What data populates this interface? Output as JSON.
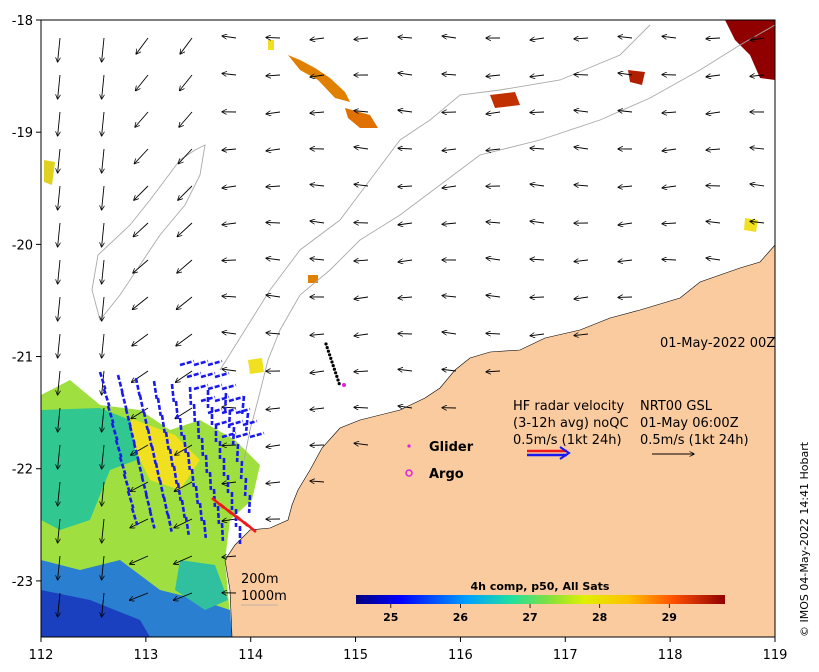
{
  "date_label": "01-May-2022 00Z",
  "credit": "© IMOS 04-May-2022 14:41 Hobart",
  "x_ticks": [
    "112",
    "113",
    "114",
    "115",
    "116",
    "117",
    "118",
    "119"
  ],
  "y_ticks": [
    "-18",
    "-19",
    "-20",
    "-21",
    "-22",
    "-23"
  ],
  "x_range": [
    112,
    119
  ],
  "y_range": [
    -23.5,
    -18
  ],
  "legend": {
    "glider": "Glider",
    "argo": "Argo",
    "hf_line1": "HF radar velocity",
    "hf_line2": "(3-12h avg) noQC",
    "hf_line3": "0.5m/s (1kt 24h)",
    "nrt_line1": "NRT00 GSL",
    "nrt_line2": "01-May 06:00Z",
    "nrt_line3": "0.5m/s (1kt 24h)"
  },
  "isobaths": [
    "200m",
    "1000m"
  ],
  "colorbar": {
    "title": "4h comp, p50, All Sats",
    "ticks": [
      "25",
      "26",
      "27",
      "28",
      "29"
    ],
    "range": [
      24.5,
      29.8
    ]
  },
  "colors": {
    "land": "#fbcba0",
    "hf_arrow": "#1a1aee",
    "hf_arrow_red": "#ee1a1a",
    "glider": "#e020e0",
    "argo": "#e020e0",
    "isobath": "#aaaaaa"
  }
}
